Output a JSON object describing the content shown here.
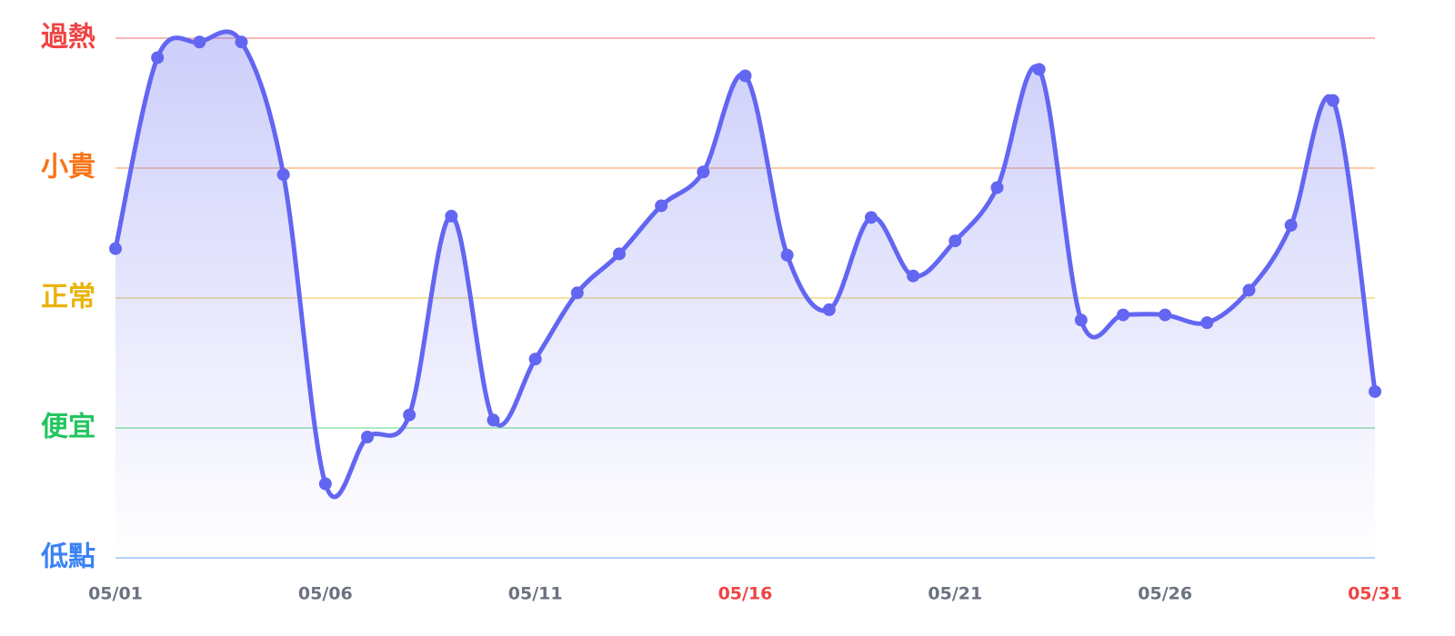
{
  "chart_data": {
    "type": "line",
    "categories": [
      "05/01",
      null,
      null,
      null,
      null,
      "05/06",
      null,
      null,
      null,
      null,
      "05/11",
      null,
      null,
      null,
      null,
      "05/16",
      null,
      null,
      null,
      null,
      "05/21",
      null,
      null,
      null,
      null,
      "05/26",
      null,
      null,
      null,
      null,
      "05/31"
    ],
    "series": [
      {
        "color": "#6366f1",
        "values": [
          2.38,
          3.85,
          3.97,
          3.97,
          2.95,
          0.57,
          0.93,
          1.1,
          2.63,
          1.06,
          1.53,
          2.04,
          2.34,
          2.71,
          2.97,
          3.71,
          2.33,
          1.91,
          2.62,
          2.17,
          2.44,
          2.85,
          3.76,
          1.83,
          1.87,
          1.87,
          1.81,
          2.06,
          2.56,
          3.52,
          1.28
        ]
      }
    ],
    "ylim": [
      0,
      4
    ],
    "yticks": [
      {
        "value": 4,
        "label": "過熱"
      },
      {
        "value": 3,
        "label": "小貴"
      },
      {
        "value": 2,
        "label": "正常"
      },
      {
        "value": 1,
        "label": "便宜"
      },
      {
        "value": 0,
        "label": "低點"
      }
    ],
    "ytick_colors": [
      "#ef4444",
      "#f97316",
      "#eab308",
      "#22c55e",
      "#3b82f6"
    ],
    "grid": true,
    "xtick_color": "#6b7280",
    "highlighted_categories": [
      15,
      30
    ],
    "highlight_color": "#ef4444"
  }
}
